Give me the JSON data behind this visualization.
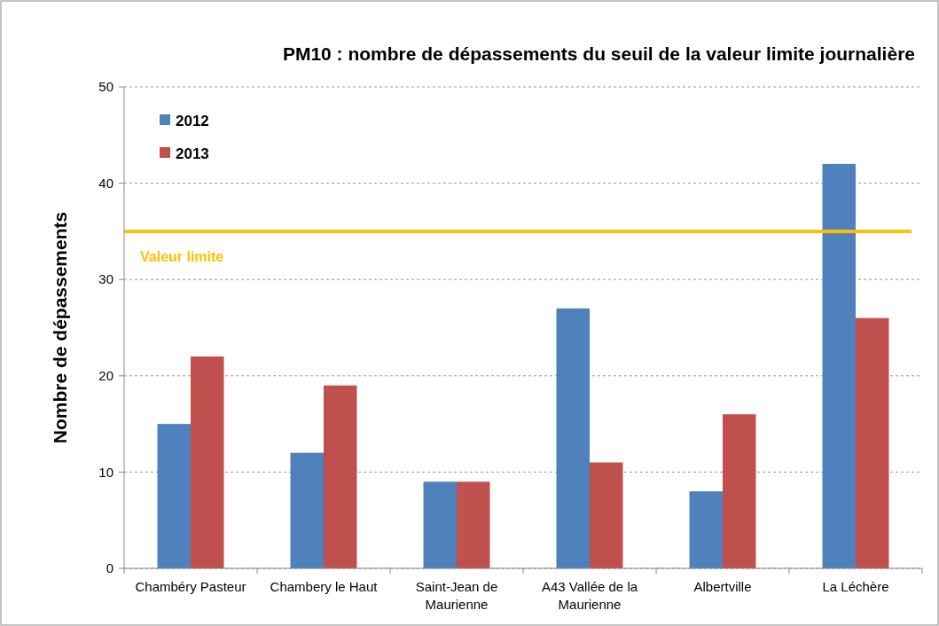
{
  "chart_data": {
    "type": "bar",
    "title": "PM10 : nombre de dépassements du seuil de la valeur limite journalière",
    "ylabel": "Nombre de dépassements",
    "categories": [
      "Chambéry Pasteur",
      "Chambery le Haut",
      "Saint-Jean de Maurienne",
      "A43 Vallée de la Maurienne",
      "Albertville",
      "La Léchère"
    ],
    "series": [
      {
        "name": "2012",
        "color": "#4f81bd",
        "values": [
          15,
          12,
          9,
          27,
          8,
          42
        ]
      },
      {
        "name": "2013",
        "color": "#c0504d",
        "values": [
          22,
          19,
          9,
          11,
          16,
          26
        ]
      }
    ],
    "ylim": [
      0,
      50
    ],
    "yticks": [
      0,
      10,
      20,
      30,
      40,
      50
    ],
    "grid": "y",
    "legend": "top left",
    "ref_lines": [
      {
        "axis": "y",
        "value": 35,
        "label": "Valeur limite",
        "color": "#ffc000"
      }
    ]
  }
}
